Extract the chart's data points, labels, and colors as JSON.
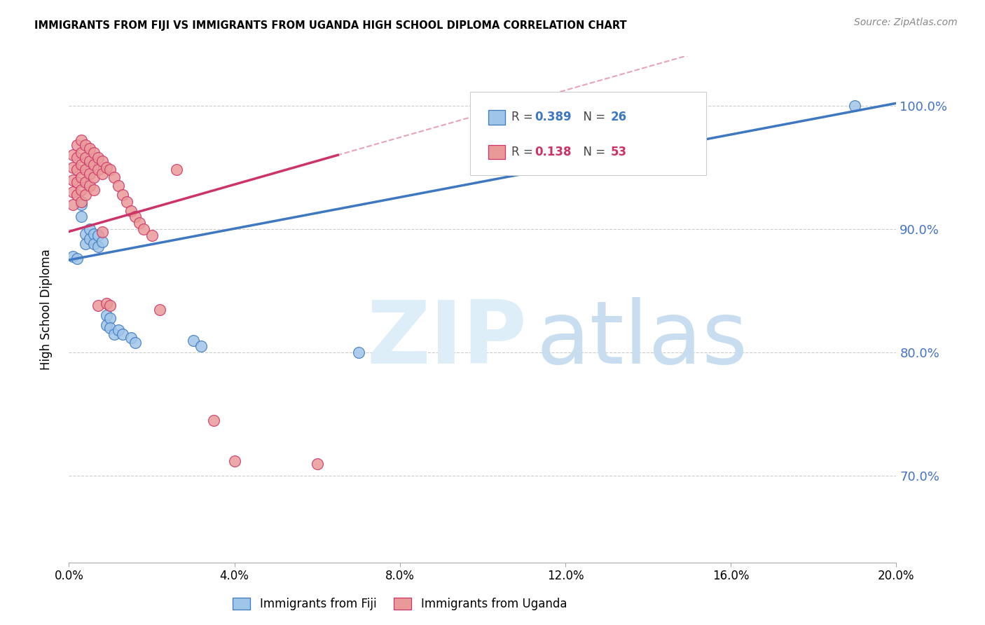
{
  "title": "IMMIGRANTS FROM FIJI VS IMMIGRANTS FROM UGANDA HIGH SCHOOL DIPLOMA CORRELATION CHART",
  "source": "Source: ZipAtlas.com",
  "ylabel": "High School Diploma",
  "legend_fiji": "Immigrants from Fiji",
  "legend_uganda": "Immigrants from Uganda",
  "R_fiji": 0.389,
  "N_fiji": 26,
  "R_uganda": 0.138,
  "N_uganda": 53,
  "fiji_color": "#9fc5e8",
  "uganda_color": "#ea9999",
  "fiji_line_color": "#3d78c0",
  "uganda_line_color": "#cc3366",
  "xlim": [
    0.0,
    0.2
  ],
  "ylim": [
    0.63,
    1.04
  ],
  "yticks": [
    0.7,
    0.8,
    0.9,
    1.0
  ],
  "xticks": [
    0.0,
    0.04,
    0.08,
    0.12,
    0.16,
    0.2
  ],
  "fiji_line_x": [
    0.0,
    0.2
  ],
  "fiji_line_y": [
    0.875,
    1.002
  ],
  "uganda_line_x": [
    0.0,
    0.065
  ],
  "uganda_line_y": [
    0.898,
    0.96
  ],
  "fiji_x": [
    0.001,
    0.002,
    0.003,
    0.003,
    0.004,
    0.004,
    0.005,
    0.005,
    0.006,
    0.006,
    0.007,
    0.007,
    0.008,
    0.009,
    0.009,
    0.01,
    0.01,
    0.011,
    0.012,
    0.013,
    0.015,
    0.016,
    0.03,
    0.032,
    0.07,
    0.19
  ],
  "fiji_y": [
    0.878,
    0.876,
    0.92,
    0.91,
    0.896,
    0.888,
    0.9,
    0.892,
    0.896,
    0.888,
    0.895,
    0.886,
    0.89,
    0.83,
    0.822,
    0.828,
    0.82,
    0.815,
    0.818,
    0.815,
    0.812,
    0.808,
    0.81,
    0.805,
    0.8,
    1.0
  ],
  "uganda_x": [
    0.001,
    0.001,
    0.001,
    0.001,
    0.001,
    0.002,
    0.002,
    0.002,
    0.002,
    0.002,
    0.003,
    0.003,
    0.003,
    0.003,
    0.003,
    0.003,
    0.004,
    0.004,
    0.004,
    0.004,
    0.004,
    0.005,
    0.005,
    0.005,
    0.005,
    0.006,
    0.006,
    0.006,
    0.006,
    0.007,
    0.007,
    0.007,
    0.008,
    0.008,
    0.008,
    0.009,
    0.009,
    0.01,
    0.01,
    0.011,
    0.012,
    0.013,
    0.014,
    0.015,
    0.016,
    0.017,
    0.018,
    0.02,
    0.022,
    0.026,
    0.035,
    0.04,
    0.06
  ],
  "uganda_y": [
    0.96,
    0.95,
    0.94,
    0.93,
    0.92,
    0.968,
    0.958,
    0.948,
    0.938,
    0.928,
    0.972,
    0.962,
    0.952,
    0.942,
    0.932,
    0.922,
    0.968,
    0.958,
    0.948,
    0.938,
    0.928,
    0.965,
    0.955,
    0.945,
    0.935,
    0.962,
    0.952,
    0.942,
    0.932,
    0.958,
    0.948,
    0.838,
    0.955,
    0.945,
    0.898,
    0.95,
    0.84,
    0.948,
    0.838,
    0.942,
    0.935,
    0.928,
    0.922,
    0.915,
    0.91,
    0.905,
    0.9,
    0.895,
    0.835,
    0.948,
    0.745,
    0.712,
    0.71
  ]
}
